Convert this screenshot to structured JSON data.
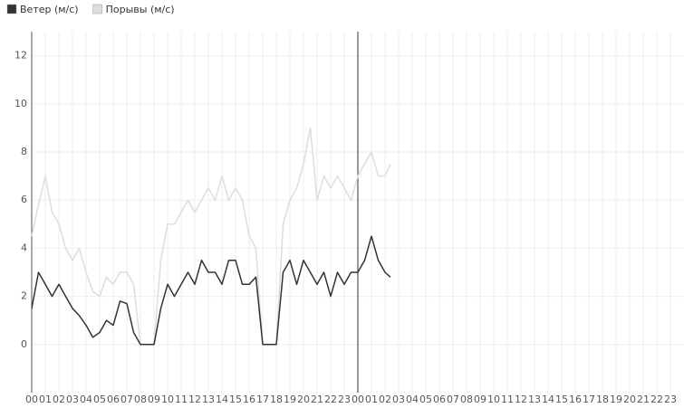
{
  "chart_data": {
    "type": "line",
    "x": [
      0,
      0.5,
      1,
      1.5,
      2,
      2.5,
      3,
      3.5,
      4,
      4.5,
      5,
      5.5,
      6,
      6.5,
      7,
      7.5,
      8,
      8.5,
      9,
      9.5,
      10,
      10.5,
      11,
      11.5,
      12,
      12.5,
      13,
      13.5,
      14,
      14.5,
      15,
      15.5,
      16,
      16.5,
      17,
      17.5,
      18,
      18.5,
      19,
      19.5,
      20,
      20.5,
      21,
      21.5,
      22,
      22.5,
      23,
      23.5,
      24,
      24.5,
      25,
      25.5,
      26,
      26.4
    ],
    "series": [
      {
        "name": "Ветер (м/с)",
        "color": "#333333",
        "values": [
          1.5,
          3.0,
          2.5,
          2.0,
          2.5,
          2.0,
          1.5,
          1.2,
          0.8,
          0.3,
          0.5,
          1.0,
          0.8,
          1.8,
          1.7,
          0.5,
          0,
          0,
          0,
          1.5,
          2.5,
          2.0,
          2.5,
          3.0,
          2.5,
          3.5,
          3.0,
          3.0,
          2.5,
          3.5,
          3.5,
          2.5,
          2.5,
          2.8,
          0,
          0,
          0,
          3.0,
          3.5,
          2.5,
          3.5,
          3.0,
          2.5,
          3.0,
          2.0,
          3.0,
          2.5,
          3.0,
          3.0,
          3.5,
          4.5,
          3.5,
          3.0,
          2.8
        ]
      },
      {
        "name": "Порывы (м/с)",
        "color": "#dddddd",
        "values": [
          4.5,
          5.8,
          7.0,
          5.5,
          5.0,
          4.0,
          3.5,
          4.0,
          3.0,
          2.2,
          2.0,
          2.8,
          2.5,
          3.0,
          3.0,
          2.5,
          0,
          0,
          0,
          3.5,
          5.0,
          5.0,
          5.5,
          6.0,
          5.5,
          6.0,
          6.5,
          6.0,
          7.0,
          6.0,
          6.5,
          6.0,
          4.5,
          4.0,
          0,
          0,
          0,
          5.0,
          6.0,
          6.5,
          7.5,
          9.0,
          6.0,
          7.0,
          6.5,
          7.0,
          6.5,
          6.0,
          7.0,
          7.5,
          8.0,
          7.0,
          7.0,
          7.5
        ]
      }
    ],
    "xlim": [
      0,
      48
    ],
    "xticks": [
      {
        "value": 0,
        "label": "00"
      },
      {
        "value": 1,
        "label": "01"
      },
      {
        "value": 2,
        "label": "02"
      },
      {
        "value": 3,
        "label": "03"
      },
      {
        "value": 4,
        "label": "04"
      },
      {
        "value": 5,
        "label": "05"
      },
      {
        "value": 6,
        "label": "06"
      },
      {
        "value": 7,
        "label": "07"
      },
      {
        "value": 8,
        "label": "08"
      },
      {
        "value": 9,
        "label": "09"
      },
      {
        "value": 10,
        "label": "10"
      },
      {
        "value": 11,
        "label": "11"
      },
      {
        "value": 12,
        "label": "12"
      },
      {
        "value": 13,
        "label": "13"
      },
      {
        "value": 14,
        "label": "14"
      },
      {
        "value": 15,
        "label": "15"
      },
      {
        "value": 16,
        "label": "16"
      },
      {
        "value": 17,
        "label": "17"
      },
      {
        "value": 18,
        "label": "18"
      },
      {
        "value": 19,
        "label": "19"
      },
      {
        "value": 20,
        "label": "20"
      },
      {
        "value": 21,
        "label": "21"
      },
      {
        "value": 22,
        "label": "22"
      },
      {
        "value": 23,
        "label": "23"
      },
      {
        "value": 24,
        "label": "00"
      },
      {
        "value": 25,
        "label": "01"
      },
      {
        "value": 26,
        "label": "02"
      },
      {
        "value": 27,
        "label": "03"
      },
      {
        "value": 28,
        "label": "04"
      },
      {
        "value": 29,
        "label": "05"
      },
      {
        "value": 30,
        "label": "06"
      },
      {
        "value": 31,
        "label": "07"
      },
      {
        "value": 32,
        "label": "08"
      },
      {
        "value": 33,
        "label": "09"
      },
      {
        "value": 34,
        "label": "10"
      },
      {
        "value": 35,
        "label": "11"
      },
      {
        "value": 36,
        "label": "12"
      },
      {
        "value": 37,
        "label": "13"
      },
      {
        "value": 38,
        "label": "14"
      },
      {
        "value": 39,
        "label": "15"
      },
      {
        "value": 40,
        "label": "16"
      },
      {
        "value": 41,
        "label": "17"
      },
      {
        "value": 42,
        "label": "18"
      },
      {
        "value": 43,
        "label": "19"
      },
      {
        "value": 44,
        "label": "20"
      },
      {
        "value": 45,
        "label": "21"
      },
      {
        "value": 46,
        "label": "22"
      },
      {
        "value": 47,
        "label": "23"
      }
    ],
    "ylim": [
      -2,
      13
    ],
    "yticks": [
      0,
      2,
      4,
      6,
      8,
      10,
      12
    ],
    "grid": true,
    "vline": 24,
    "legend": "top-left"
  }
}
